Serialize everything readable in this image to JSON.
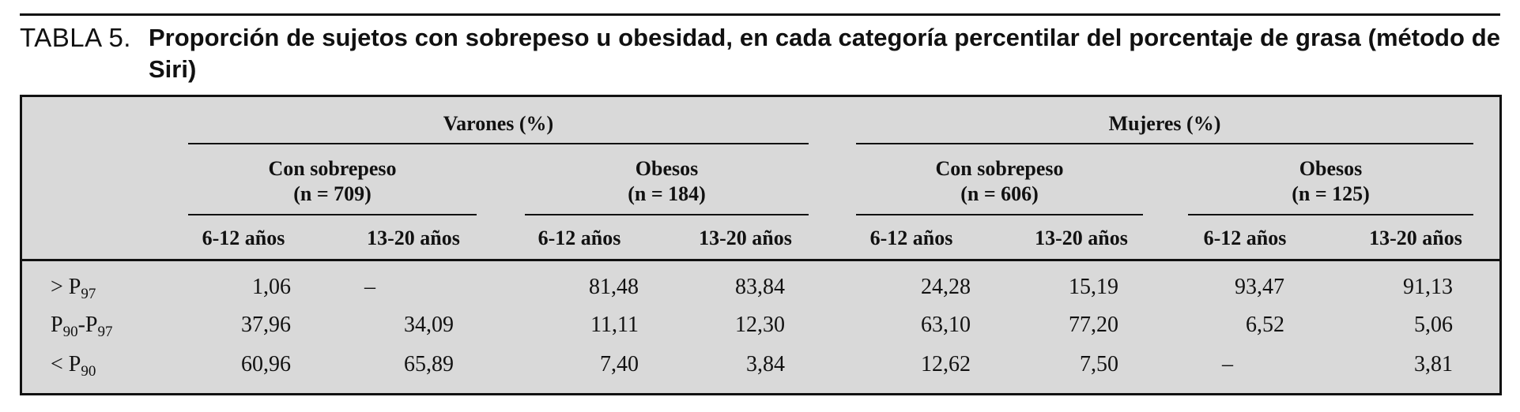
{
  "caption": {
    "label": "TABLA 5.",
    "title": "Proporción de sujetos con sobrepeso u obesidad, en cada categoría percentilar del porcentaje de grasa (método de Siri)"
  },
  "table": {
    "groups": [
      {
        "label": "Varones (%)",
        "subgroups": [
          {
            "name": "Con sobrepeso",
            "n": "(n = 709)"
          },
          {
            "name": "Obesos",
            "n": "(n = 184)"
          }
        ]
      },
      {
        "label": "Mujeres (%)",
        "subgroups": [
          {
            "name": "Con sobrepeso",
            "n": "(n = 606)"
          },
          {
            "name": "Obesos",
            "n": "(n = 125)"
          }
        ]
      }
    ],
    "age_columns": [
      "6-12 años",
      "13-20 años",
      "6-12 años",
      "13-20 años",
      "6-12 años",
      "13-20 años",
      "6-12 años",
      "13-20 años"
    ],
    "rows": [
      {
        "label_main": "> P",
        "label_sub": "97",
        "label_main2": "",
        "label_sub2": "",
        "values": [
          "1,06",
          "–",
          "81,48",
          "83,84",
          "24,28",
          "15,19",
          "93,47",
          "91,13"
        ]
      },
      {
        "label_main": "P",
        "label_sub": "90",
        "label_main2": "-P",
        "label_sub2": "97",
        "values": [
          "37,96",
          "34,09",
          "11,11",
          "12,30",
          "63,10",
          "77,20",
          "6,52",
          "5,06"
        ]
      },
      {
        "label_main": "< P",
        "label_sub": "90",
        "label_main2": "",
        "label_sub2": "",
        "values": [
          "60,96",
          "65,89",
          "7,40",
          "3,84",
          "12,62",
          "7,50",
          "–",
          "3,81"
        ]
      }
    ]
  }
}
